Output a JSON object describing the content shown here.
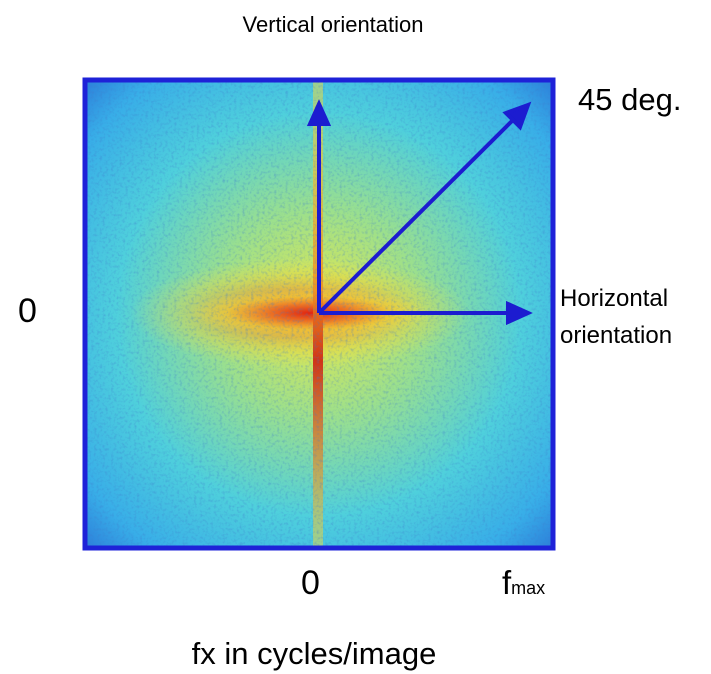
{
  "labels": {
    "vertical": "Vertical orientation",
    "diagonal": "45 deg.",
    "horizontal": [
      "Horizontal",
      "orientation"
    ],
    "y_zero": "0",
    "x_zero": "0",
    "fmax": {
      "base": "f",
      "sub": "max"
    },
    "x_axis": "fx in cycles/image"
  }
}
